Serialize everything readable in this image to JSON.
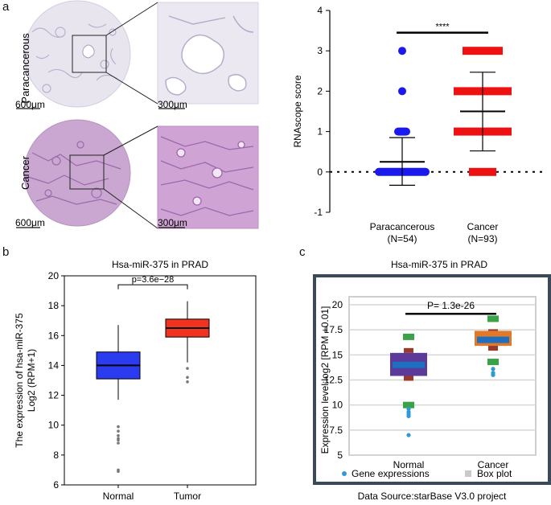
{
  "panel_a": {
    "letter": "a",
    "histology": {
      "row_labels": [
        "Paracancerous",
        "Cancer"
      ],
      "scale_left": "600μm",
      "scale_right": "300μm"
    }
  },
  "panel_b": {
    "letter": "b"
  },
  "panel_c": {
    "letter": "c",
    "source": "Data Source:starBase V3.0 project"
  },
  "chart_data": [
    {
      "id": "rnascope",
      "type": "scatter",
      "title": "",
      "xlabel": "",
      "ylabel": "RNAscope score",
      "ylim": [
        -1,
        4
      ],
      "yticks": [
        "-1",
        "0",
        "1",
        "2",
        "3",
        "4"
      ],
      "categories": [
        "Paracancerous\n(N=54)",
        "Cancer\n(N=93)"
      ],
      "category_lines": [
        [
          "Paracancerous",
          "(N=54)"
        ],
        [
          "Cancer",
          "(N=93)"
        ]
      ],
      "significance": "****",
      "reference_line": 0,
      "series": [
        {
          "name": "Paracancerous",
          "color": "#1a1aee",
          "score_levels": [
            0,
            1,
            2,
            3
          ],
          "mean": 0.25,
          "sd_low": -0.33,
          "sd_high": 0.85
        },
        {
          "name": "Cancer",
          "color": "#ee1111",
          "score_levels": [
            0,
            1,
            2,
            3
          ],
          "mean": 1.5,
          "sd_low": 0.52,
          "sd_high": 2.47
        }
      ]
    },
    {
      "id": "prad_box_b",
      "type": "box",
      "title": "Hsa-miR-375  in PRAD",
      "xlabel": "",
      "ylabel": "The expression of hsa-miR-375\nLog2 (RPM+1)",
      "ylabel_lines": [
        "The expression of hsa-miR-375",
        "Log2 (RPM+1)"
      ],
      "ylim": [
        6,
        20
      ],
      "yticks": [
        "6",
        "8",
        "10",
        "12",
        "14",
        "16",
        "18",
        "20"
      ],
      "categories": [
        "Normal",
        "Tumor"
      ],
      "pvalue": "p=3.6e−28",
      "series": [
        {
          "name": "Normal",
          "color": "#2b3cf0",
          "whisker_low": 11.7,
          "q1": 13.1,
          "median": 14.0,
          "q3": 14.9,
          "whisker_high": 16.7,
          "outliers": [
            9.9,
            9.6,
            9.3,
            9.1,
            9.0,
            8.8,
            7.0,
            6.9
          ]
        },
        {
          "name": "Tumor",
          "color": "#f0321e",
          "whisker_low": 14.2,
          "q1": 15.9,
          "median": 16.5,
          "q3": 17.1,
          "whisker_high": 18.3,
          "outliers": [
            13.8,
            13.2,
            12.9
          ]
        }
      ]
    },
    {
      "id": "prad_box_c",
      "type": "box",
      "title": "Hsa-miR-375  in PRAD",
      "xlabel": "",
      "ylabel": "Expression level:log2 [RPM +0.01]",
      "ylim": [
        5,
        20
      ],
      "yticks": [
        "5",
        "7.5",
        "10",
        "12.5",
        "15",
        "17.5",
        "20"
      ],
      "categories": [
        "Normal",
        "Cancer"
      ],
      "pvalue": "P= 1.3e-26",
      "legend": [
        "Gene expressions",
        "Box plot"
      ],
      "series": [
        {
          "name": "Normal",
          "box_color": "#5b3a9a",
          "median_color": "#1f6fc0",
          "q1": 12.9,
          "median": 14.0,
          "q3": 15.2,
          "whisker_low": 10.0,
          "whisker_high": 16.8,
          "points": [
            9.6,
            9.3,
            9.1,
            8.9,
            7.0
          ]
        },
        {
          "name": "Cancer",
          "box_color": "#e07a2a",
          "median_color": "#1f6fc0",
          "q1": 15.9,
          "median": 16.5,
          "q3": 17.4,
          "whisker_low": 14.3,
          "whisker_high": 18.6,
          "points": [
            13.6,
            13.2,
            13.0
          ]
        }
      ]
    }
  ]
}
